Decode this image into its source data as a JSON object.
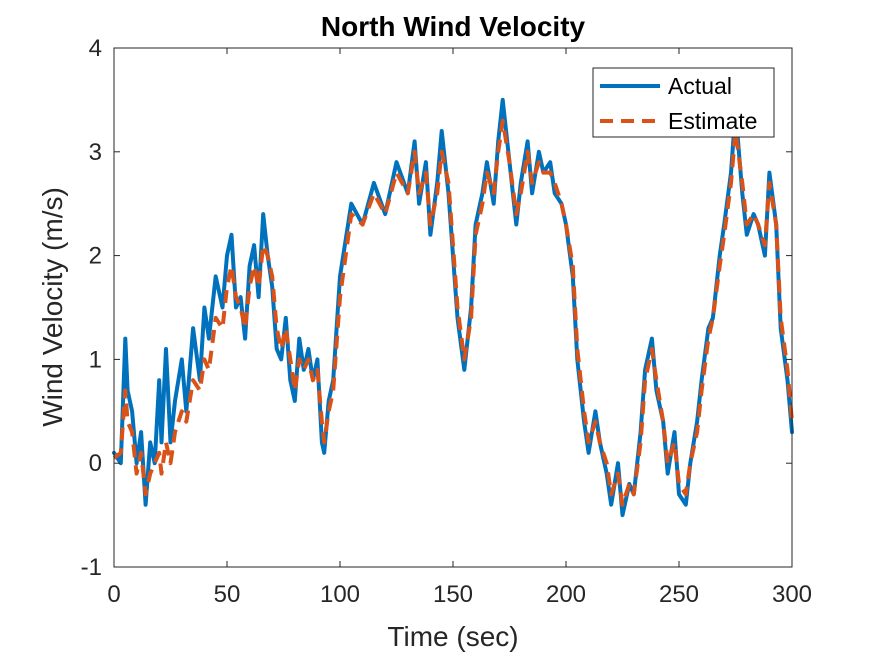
{
  "chart_data": {
    "type": "line",
    "title": "North Wind Velocity",
    "xlabel": "Time (sec)",
    "ylabel": "Wind Velocity (m/s)",
    "xlim": [
      0,
      300
    ],
    "ylim": [
      -1,
      4
    ],
    "xticks": [
      0,
      50,
      100,
      150,
      200,
      250,
      300
    ],
    "yticks": [
      -1,
      0,
      1,
      2,
      3,
      4
    ],
    "xtick_labels": [
      "0",
      "50",
      "100",
      "150",
      "200",
      "250",
      "300"
    ],
    "ytick_labels": [
      "-1",
      "0",
      "1",
      "2",
      "3",
      "4"
    ],
    "grid": false,
    "legend_position": "top-right",
    "series": [
      {
        "name": "Actual",
        "color": "#0072BD",
        "style": "solid",
        "x": [
          0,
          3,
          5,
          6,
          8,
          10,
          12,
          14,
          16,
          18,
          20,
          21,
          23,
          25,
          27,
          30,
          32,
          35,
          38,
          40,
          42,
          45,
          48,
          50,
          52,
          54,
          56,
          58,
          60,
          62,
          64,
          66,
          68,
          70,
          72,
          74,
          76,
          78,
          80,
          82,
          84,
          86,
          88,
          90,
          92,
          93,
          95,
          97,
          100,
          105,
          110,
          115,
          120,
          125,
          130,
          133,
          135,
          138,
          140,
          143,
          145,
          148,
          150,
          152,
          155,
          158,
          160,
          163,
          165,
          168,
          170,
          172,
          175,
          178,
          180,
          183,
          185,
          188,
          190,
          193,
          195,
          198,
          200,
          203,
          205,
          208,
          210,
          213,
          215,
          218,
          220,
          223,
          225,
          228,
          230,
          233,
          235,
          238,
          240,
          243,
          245,
          248,
          250,
          253,
          255,
          258,
          260,
          263,
          265,
          268,
          270,
          273,
          275,
          278,
          280,
          283,
          285,
          288,
          290,
          293,
          295,
          298,
          300
        ],
        "values": [
          0.1,
          0.0,
          1.2,
          0.7,
          0.5,
          0.0,
          0.3,
          -0.4,
          0.2,
          0.0,
          0.8,
          0.2,
          1.1,
          0.2,
          0.6,
          1.0,
          0.5,
          1.3,
          0.8,
          1.5,
          1.2,
          1.8,
          1.5,
          2.0,
          2.2,
          1.5,
          1.6,
          1.2,
          1.9,
          2.1,
          1.6,
          2.4,
          2.0,
          1.7,
          1.1,
          1.0,
          1.4,
          0.8,
          0.6,
          1.2,
          0.9,
          1.1,
          0.8,
          1.0,
          0.2,
          0.1,
          0.6,
          0.8,
          1.8,
          2.5,
          2.3,
          2.7,
          2.4,
          2.9,
          2.6,
          3.1,
          2.5,
          2.9,
          2.2,
          2.7,
          3.2,
          2.6,
          2.0,
          1.4,
          0.9,
          1.5,
          2.3,
          2.6,
          2.9,
          2.5,
          3.1,
          3.5,
          2.9,
          2.3,
          2.7,
          3.1,
          2.6,
          3.0,
          2.8,
          2.9,
          2.6,
          2.5,
          2.3,
          1.8,
          1.0,
          0.4,
          0.1,
          0.5,
          0.2,
          -0.1,
          -0.4,
          0.0,
          -0.5,
          -0.2,
          -0.3,
          0.3,
          0.9,
          1.2,
          0.7,
          0.4,
          -0.1,
          0.3,
          -0.3,
          -0.4,
          0.0,
          0.4,
          0.8,
          1.3,
          1.4,
          2.0,
          2.3,
          2.8,
          3.4,
          2.6,
          2.2,
          2.4,
          2.3,
          2.0,
          2.8,
          2.3,
          1.3,
          0.8,
          0.3
        ]
      },
      {
        "name": "Estimate",
        "color": "#D95319",
        "style": "dashed",
        "x": [
          0,
          3,
          5,
          6,
          8,
          10,
          12,
          14,
          16,
          18,
          20,
          21,
          23,
          25,
          27,
          30,
          32,
          35,
          38,
          40,
          42,
          45,
          48,
          50,
          52,
          54,
          56,
          58,
          60,
          62,
          64,
          66,
          68,
          70,
          72,
          74,
          76,
          78,
          80,
          82,
          84,
          86,
          88,
          90,
          92,
          93,
          95,
          97,
          100,
          105,
          110,
          115,
          120,
          125,
          130,
          133,
          135,
          138,
          140,
          143,
          145,
          148,
          150,
          152,
          155,
          158,
          160,
          163,
          165,
          168,
          170,
          172,
          175,
          178,
          180,
          183,
          185,
          188,
          190,
          193,
          195,
          198,
          200,
          203,
          205,
          208,
          210,
          213,
          215,
          218,
          220,
          223,
          225,
          228,
          230,
          233,
          235,
          238,
          240,
          243,
          245,
          248,
          250,
          253,
          255,
          258,
          260,
          263,
          265,
          268,
          270,
          273,
          275,
          278,
          280,
          283,
          285,
          288,
          290,
          293,
          295,
          298,
          300
        ],
        "values": [
          0.05,
          0.1,
          0.7,
          0.4,
          0.3,
          -0.1,
          0.1,
          -0.3,
          -0.1,
          0.0,
          0.1,
          -0.1,
          0.2,
          0.0,
          0.3,
          0.5,
          0.4,
          0.8,
          0.7,
          1.0,
          0.9,
          1.4,
          1.3,
          1.7,
          1.9,
          1.6,
          1.5,
          1.3,
          1.7,
          1.9,
          1.7,
          2.1,
          2.0,
          1.8,
          1.3,
          1.1,
          1.3,
          1.0,
          0.7,
          1.0,
          0.9,
          1.0,
          0.8,
          0.9,
          0.4,
          0.2,
          0.5,
          0.7,
          1.6,
          2.4,
          2.3,
          2.6,
          2.4,
          2.8,
          2.6,
          3.0,
          2.6,
          2.8,
          2.3,
          2.6,
          3.0,
          2.7,
          2.1,
          1.5,
          1.0,
          1.4,
          2.2,
          2.5,
          2.8,
          2.6,
          3.0,
          3.3,
          2.9,
          2.4,
          2.6,
          3.0,
          2.7,
          2.9,
          2.8,
          2.8,
          2.7,
          2.5,
          2.3,
          1.9,
          1.1,
          0.5,
          0.2,
          0.4,
          0.2,
          0.0,
          -0.3,
          -0.1,
          -0.4,
          -0.2,
          -0.3,
          0.2,
          0.8,
          1.1,
          0.8,
          0.4,
          0.0,
          0.2,
          -0.2,
          -0.3,
          0.0,
          0.3,
          0.7,
          1.2,
          1.4,
          1.9,
          2.2,
          2.7,
          3.2,
          2.7,
          2.3,
          2.4,
          2.3,
          2.1,
          2.7,
          2.3,
          1.4,
          0.9,
          0.4
        ]
      }
    ]
  }
}
